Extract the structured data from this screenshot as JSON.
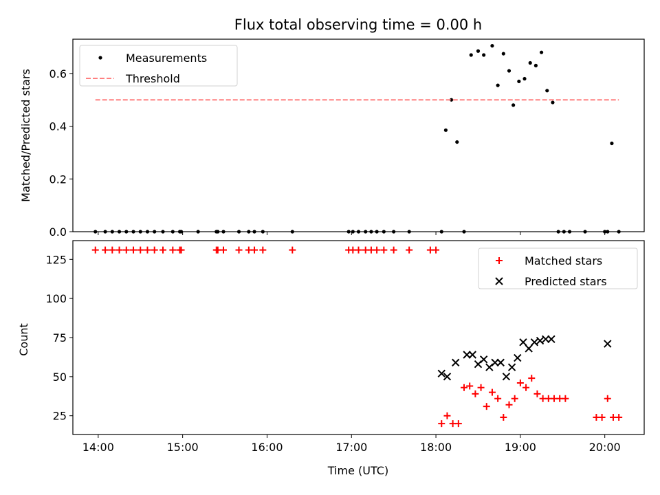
{
  "title": "Flux total observing time = 0.00 h",
  "chart_data": [
    {
      "type": "scatter",
      "ylabel": "Matched/Predicted stars",
      "xlabel": "",
      "ylim": [
        0,
        0.73
      ],
      "yticks": [
        "0.0",
        "0.2",
        "0.4",
        "0.6"
      ],
      "ytick_values": [
        0.0,
        0.2,
        0.4,
        0.6
      ],
      "legend_position": "upper-left",
      "series": [
        {
          "name": "Measurements",
          "color": "#000000",
          "marker": "dot",
          "x": [
            "13:58",
            "14:05",
            "14:10",
            "14:15",
            "14:20",
            "14:25",
            "14:30",
            "14:35",
            "14:40",
            "14:46",
            "14:53",
            "14:58",
            "14:59",
            "15:11",
            "15:24",
            "15:25",
            "15:29",
            "15:40",
            "15:47",
            "15:51",
            "15:57",
            "16:18",
            "16:58",
            "17:01",
            "17:05",
            "17:10",
            "17:14",
            "17:18",
            "17:23",
            "17:30",
            "17:41",
            "18:04",
            "18:07",
            "18:11",
            "18:15",
            "18:20",
            "18:25",
            "18:30",
            "18:34",
            "18:40",
            "18:44",
            "18:48",
            "18:52",
            "18:55",
            "18:59",
            "19:03",
            "19:07",
            "19:11",
            "19:15",
            "19:19",
            "19:23",
            "19:27",
            "19:31",
            "19:35",
            "19:46",
            "20:00",
            "20:02",
            "20:05",
            "20:10"
          ],
          "y": [
            0,
            0,
            0,
            0,
            0,
            0,
            0,
            0,
            0,
            0,
            0,
            0,
            0,
            0,
            0,
            0,
            0,
            0,
            0,
            0,
            0,
            0,
            0,
            0,
            0,
            0,
            0,
            0,
            0,
            0,
            0,
            0,
            0.385,
            0.5,
            0.34,
            0,
            0.67,
            0.685,
            0.67,
            0.705,
            0.555,
            0.675,
            0.61,
            0.48,
            0.57,
            0.58,
            0.64,
            0.63,
            0.68,
            0.535,
            0.49,
            0,
            0,
            0,
            0,
            0,
            0,
            0.335,
            0
          ]
        },
        {
          "name": "Threshold",
          "color": "#ff8080",
          "style": "dashed",
          "x": [
            "13:58",
            "20:10"
          ],
          "y": [
            0.5,
            0.5
          ]
        }
      ]
    },
    {
      "type": "scatter",
      "ylabel": "Count",
      "xlabel": "Time (UTC)",
      "ylim": [
        13,
        137
      ],
      "yticks": [
        "25",
        "50",
        "75",
        "100",
        "125"
      ],
      "ytick_values": [
        25,
        50,
        75,
        100,
        125
      ],
      "xticks": [
        "14:00",
        "15:00",
        "16:00",
        "17:00",
        "18:00",
        "19:00",
        "20:00"
      ],
      "legend_position": "upper-right",
      "series": [
        {
          "name": "Matched stars",
          "color": "#ff0000",
          "marker": "plus",
          "x": [
            "13:58",
            "14:05",
            "14:10",
            "14:15",
            "14:20",
            "14:25",
            "14:30",
            "14:35",
            "14:40",
            "14:46",
            "14:53",
            "14:58",
            "14:59",
            "15:24",
            "15:25",
            "15:29",
            "15:40",
            "15:47",
            "15:51",
            "15:57",
            "16:18",
            "16:58",
            "17:01",
            "17:05",
            "17:10",
            "17:14",
            "17:18",
            "17:23",
            "17:30",
            "17:41",
            "17:56",
            "18:00",
            "18:04",
            "18:08",
            "18:12",
            "18:16",
            "18:20",
            "18:24",
            "18:28",
            "18:32",
            "18:36",
            "18:40",
            "18:44",
            "18:48",
            "18:52",
            "18:56",
            "19:00",
            "19:04",
            "19:08",
            "19:12",
            "19:16",
            "19:20",
            "19:24",
            "19:28",
            "19:32",
            "19:54",
            "19:58",
            "20:02",
            "20:06",
            "20:10"
          ],
          "y": [
            131,
            131,
            131,
            131,
            131,
            131,
            131,
            131,
            131,
            131,
            131,
            131,
            131,
            131,
            131,
            131,
            131,
            131,
            131,
            131,
            131,
            131,
            131,
            131,
            131,
            131,
            131,
            131,
            131,
            131,
            131,
            131,
            20,
            25,
            20,
            20,
            43,
            44,
            39,
            43,
            31,
            40,
            36,
            24,
            32,
            36,
            46,
            43,
            49,
            39,
            36,
            36,
            36,
            36,
            36,
            24,
            24,
            36,
            24,
            24
          ]
        },
        {
          "name": "Predicted stars",
          "color": "#000000",
          "marker": "x",
          "x": [
            "18:04",
            "18:08",
            "18:14",
            "18:22",
            "18:26",
            "18:30",
            "18:34",
            "18:38",
            "18:42",
            "18:46",
            "18:50",
            "18:54",
            "18:58",
            "19:02",
            "19:06",
            "19:10",
            "19:14",
            "19:18",
            "19:22",
            "20:02"
          ],
          "y": [
            52,
            50,
            59,
            64,
            64,
            58,
            61,
            56,
            59,
            59,
            50,
            56,
            62,
            72,
            68,
            72,
            73,
            74,
            74,
            71
          ]
        }
      ]
    }
  ]
}
